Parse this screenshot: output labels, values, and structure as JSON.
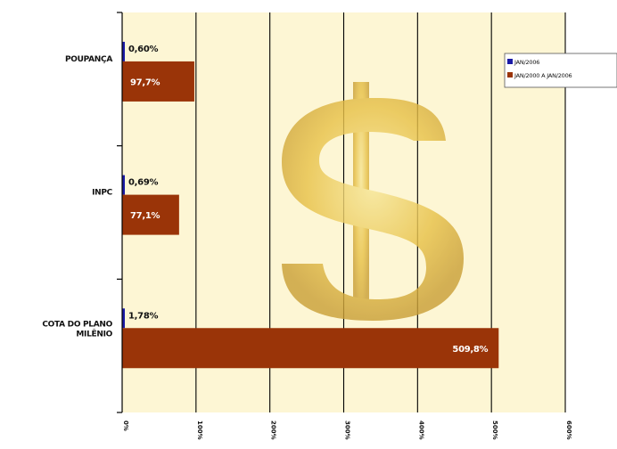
{
  "chart_data": {
    "type": "bar",
    "orientation": "horizontal",
    "categories": [
      [
        "POUPANÇA"
      ],
      [
        "INPC"
      ],
      [
        "COTA DO PLANO",
        "MILÊNIO"
      ]
    ],
    "series": [
      {
        "name": "JAN/2006",
        "values": [
          0.6,
          0.69,
          1.78
        ],
        "labels": [
          "0,60%",
          "0,69%",
          "1,78%"
        ],
        "color": "#1a1aa6"
      },
      {
        "name": "JAN/2000 A JAN/2006",
        "values": [
          97.7,
          77.1,
          509.8
        ],
        "labels": [
          "97,7%",
          "77,1%",
          "509,8%"
        ],
        "color": "#9a3408"
      }
    ],
    "xlim": [
      0,
      600
    ],
    "xticks": [
      0,
      100,
      200,
      300,
      400,
      500,
      600
    ],
    "xtick_labels": [
      "0%",
      "100%",
      "200%",
      "300%",
      "400%",
      "500%",
      "600%"
    ],
    "legend_position": "top-right",
    "grid": true,
    "background_color": "#fdf6d4",
    "watermark_symbol": "$",
    "watermark_color": "#e2b52c"
  }
}
